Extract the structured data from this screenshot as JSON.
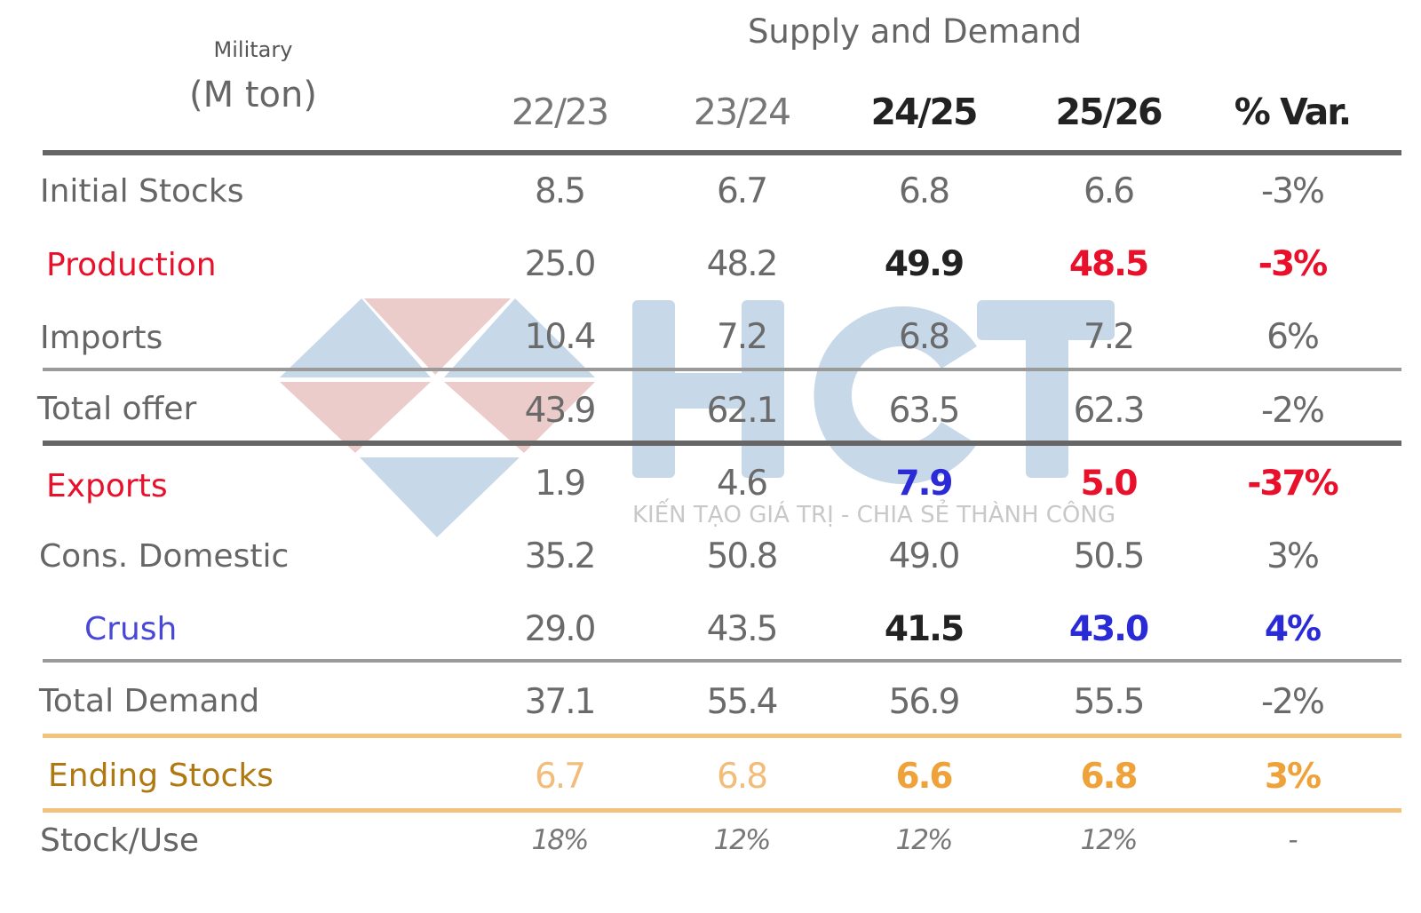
{
  "title": "Supply and Demand",
  "unit_top": "Military",
  "unit": "(M ton)",
  "columns": [
    "22/23",
    "23/24",
    "24/25",
    "25/26",
    "% Var."
  ],
  "rows": [
    {
      "label": "Initial Stocks",
      "values": [
        "8.5",
        "6.7",
        "6.8",
        "6.6",
        "-3%"
      ]
    },
    {
      "label": "Production",
      "values": [
        "25.0",
        "48.2",
        "49.9",
        "48.5",
        "-3%"
      ]
    },
    {
      "label": "Imports",
      "values": [
        "10.4",
        "7.2",
        "6.8",
        "7.2",
        "6%"
      ]
    },
    {
      "label": "Total offer",
      "values": [
        "43.9",
        "62.1",
        "63.5",
        "62.3",
        "-2%"
      ]
    },
    {
      "label": "Exports",
      "values": [
        "1.9",
        "4.6",
        "7.9",
        "5.0",
        "-37%"
      ]
    },
    {
      "label": "Cons. Domestic",
      "values": [
        "35.2",
        "50.8",
        "49.0",
        "50.5",
        "3%"
      ]
    },
    {
      "label": "Crush",
      "values": [
        "29.0",
        "43.5",
        "41.5",
        "43.0",
        "4%"
      ]
    },
    {
      "label": "Total Demand",
      "values": [
        "37.1",
        "55.4",
        "56.9",
        "55.5",
        "-2%"
      ]
    },
    {
      "label": "Ending Stocks",
      "values": [
        "6.7",
        "6.8",
        "6.6",
        "6.8",
        "3%"
      ]
    },
    {
      "label": "Stock/Use",
      "values": [
        "18%",
        "12%",
        "12%",
        "12%",
        "-"
      ]
    }
  ],
  "watermark": {
    "logo_text": "HCT",
    "tagline": "KIẾN TẠO GIÁ TRỊ - CHIA SẺ THÀNH CÔNG",
    "colors": {
      "blue": "#c5d6e8",
      "pink": "#ecc9c9"
    }
  },
  "colors": {
    "red": "#e8102a",
    "blue": "#2a2ad6",
    "gold": "#b07810",
    "orange": "#efa23a"
  }
}
